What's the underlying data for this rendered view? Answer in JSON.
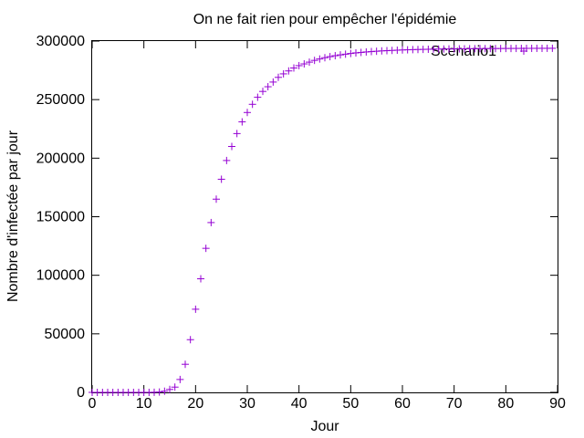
{
  "chart_data": {
    "type": "scatter",
    "title": "On ne fait rien pour empêcher l'épidémie",
    "xlabel": "Jour",
    "ylabel": "Nombre d'infectée par jour",
    "xlim": [
      0,
      90
    ],
    "ylim": [
      0,
      300000
    ],
    "xticks": [
      0,
      10,
      20,
      30,
      40,
      50,
      60,
      70,
      80,
      90
    ],
    "yticks": [
      0,
      50000,
      100000,
      150000,
      200000,
      250000,
      300000
    ],
    "grid": false,
    "legend_position": "top-right",
    "series": [
      {
        "name": "Scenario1",
        "color": "#9400d3",
        "marker": "plus",
        "points": [
          [
            0,
            0
          ],
          [
            1,
            0
          ],
          [
            2,
            0
          ],
          [
            3,
            0
          ],
          [
            4,
            0
          ],
          [
            5,
            0
          ],
          [
            6,
            0
          ],
          [
            7,
            0
          ],
          [
            8,
            0
          ],
          [
            9,
            0
          ],
          [
            10,
            0
          ],
          [
            11,
            0
          ],
          [
            12,
            100
          ],
          [
            13,
            300
          ],
          [
            14,
            1000
          ],
          [
            15,
            2500
          ],
          [
            16,
            4500
          ],
          [
            17,
            11000
          ],
          [
            18,
            24000
          ],
          [
            19,
            45000
          ],
          [
            20,
            71000
          ],
          [
            21,
            97000
          ],
          [
            22,
            123000
          ],
          [
            23,
            145000
          ],
          [
            24,
            165000
          ],
          [
            25,
            182000
          ],
          [
            26,
            198000
          ],
          [
            27,
            210000
          ],
          [
            28,
            221000
          ],
          [
            29,
            231000
          ],
          [
            30,
            239000
          ],
          [
            31,
            246000
          ],
          [
            32,
            252000
          ],
          [
            33,
            257000
          ],
          [
            34,
            261000
          ],
          [
            35,
            265000
          ],
          [
            36,
            269000
          ],
          [
            37,
            272000
          ],
          [
            38,
            274500
          ],
          [
            39,
            277000
          ],
          [
            40,
            279000
          ],
          [
            41,
            280500
          ],
          [
            42,
            282000
          ],
          [
            43,
            283500
          ],
          [
            44,
            284700
          ],
          [
            45,
            285800
          ],
          [
            46,
            286700
          ],
          [
            47,
            287500
          ],
          [
            48,
            288200
          ],
          [
            49,
            288800
          ],
          [
            50,
            289400
          ],
          [
            51,
            289900
          ],
          [
            52,
            290300
          ],
          [
            53,
            290700
          ],
          [
            54,
            291000
          ],
          [
            55,
            291300
          ],
          [
            56,
            291600
          ],
          [
            57,
            291800
          ],
          [
            58,
            292000
          ],
          [
            59,
            292200
          ],
          [
            60,
            292400
          ],
          [
            61,
            292550
          ],
          [
            62,
            292700
          ],
          [
            63,
            292800
          ],
          [
            64,
            292900
          ],
          [
            65,
            293000
          ],
          [
            66,
            293100
          ],
          [
            67,
            293150
          ],
          [
            68,
            293200
          ],
          [
            69,
            293250
          ],
          [
            70,
            293300
          ],
          [
            71,
            293350
          ],
          [
            72,
            293400
          ],
          [
            73,
            293450
          ],
          [
            74,
            293500
          ],
          [
            75,
            293530
          ],
          [
            76,
            293560
          ],
          [
            77,
            293590
          ],
          [
            78,
            293620
          ],
          [
            79,
            293650
          ],
          [
            80,
            293680
          ],
          [
            81,
            293700
          ],
          [
            82,
            293720
          ],
          [
            83,
            293740
          ],
          [
            84,
            293760
          ],
          [
            85,
            293780
          ],
          [
            86,
            293800
          ],
          [
            87,
            293810
          ],
          [
            88,
            293820
          ],
          [
            89,
            293830
          ]
        ]
      }
    ]
  }
}
